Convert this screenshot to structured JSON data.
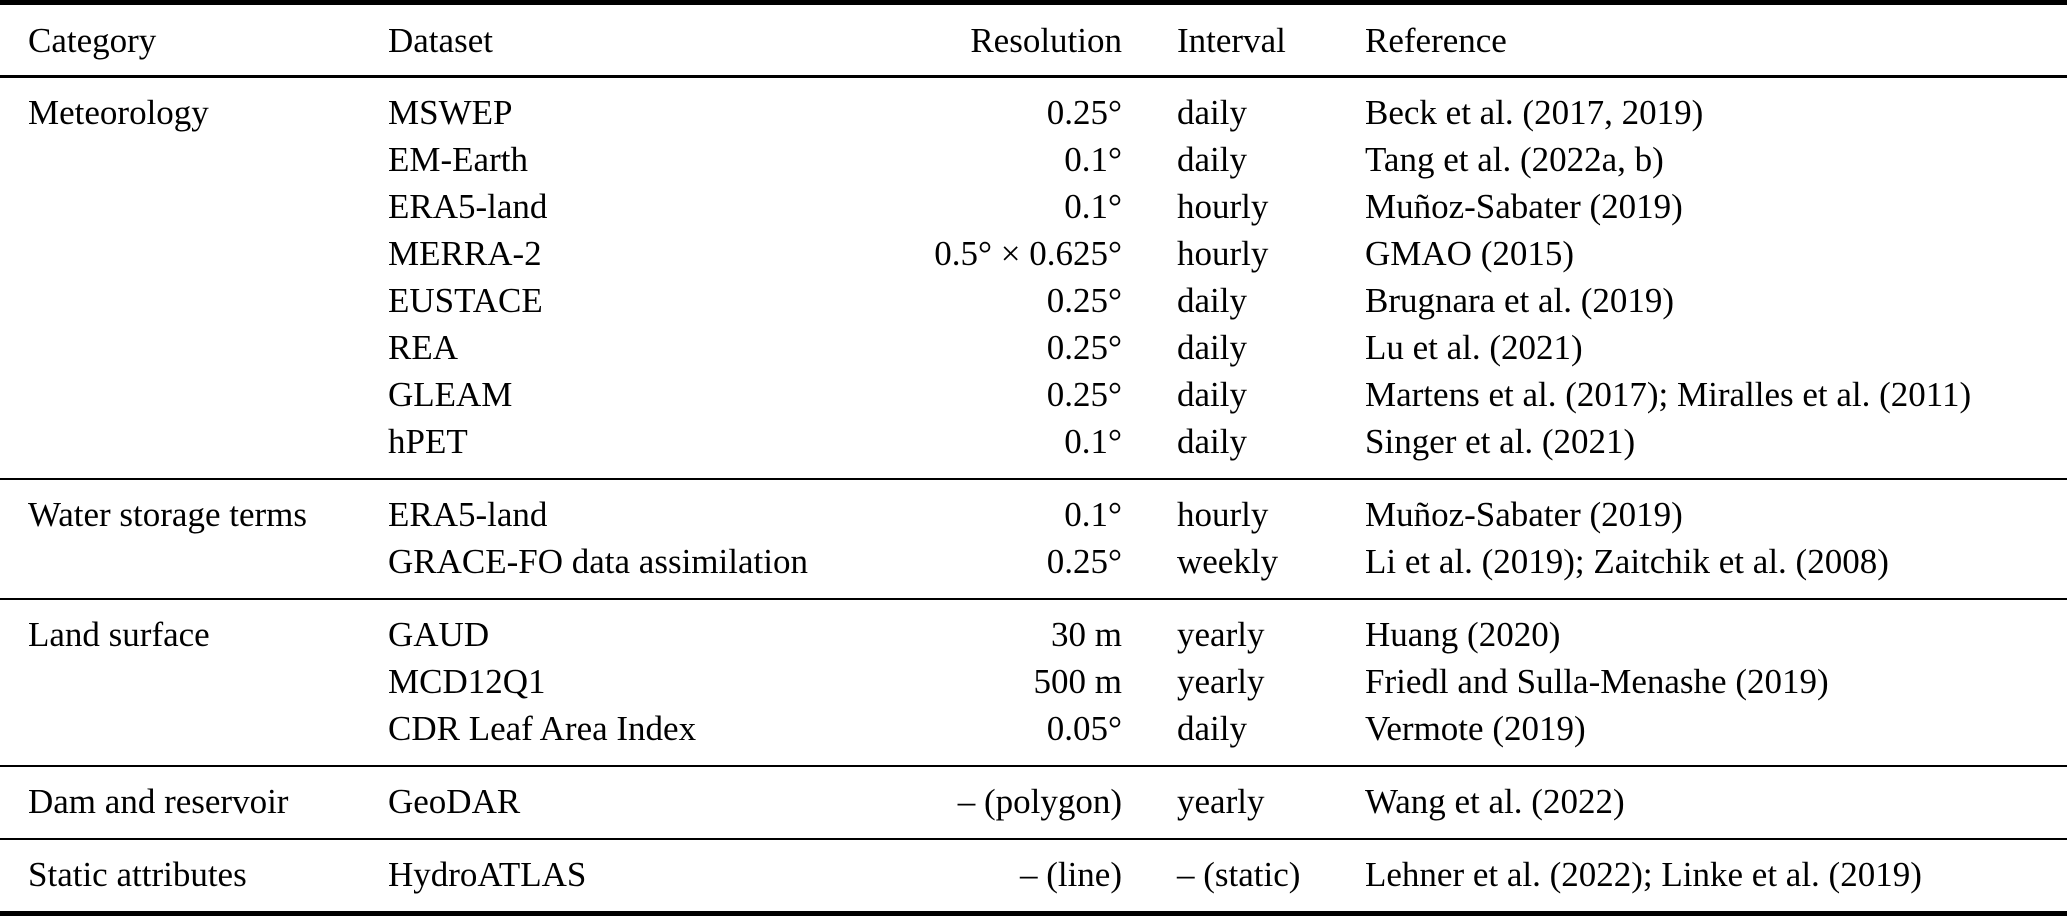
{
  "table": {
    "header": {
      "category": "Category",
      "dataset": "Dataset",
      "resolution": "Resolution",
      "interval": "Interval",
      "reference": "Reference"
    },
    "sections": [
      {
        "category": "Meteorology",
        "rows": [
          {
            "dataset": "MSWEP",
            "resolution": "0.25°",
            "interval": "daily",
            "reference": "Beck et al. (2017, 2019)"
          },
          {
            "dataset": "EM-Earth",
            "resolution": "0.1°",
            "interval": "daily",
            "reference": "Tang et al. (2022a, b)"
          },
          {
            "dataset": "ERA5-land",
            "resolution": "0.1°",
            "interval": "hourly",
            "reference": "Muñoz-Sabater (2019)"
          },
          {
            "dataset": "MERRA-2",
            "resolution": "0.5° × 0.625°",
            "interval": "hourly",
            "reference": "GMAO (2015)"
          },
          {
            "dataset": "EUSTACE",
            "resolution": "0.25°",
            "interval": "daily",
            "reference": "Brugnara et al. (2019)"
          },
          {
            "dataset": "REA",
            "resolution": "0.25°",
            "interval": "daily",
            "reference": "Lu et al. (2021)"
          },
          {
            "dataset": "GLEAM",
            "resolution": "0.25°",
            "interval": "daily",
            "reference": "Martens et al. (2017); Miralles et al. (2011)"
          },
          {
            "dataset": "hPET",
            "resolution": "0.1°",
            "interval": "daily",
            "reference": "Singer et al. (2021)"
          }
        ]
      },
      {
        "category": "Water storage terms",
        "rows": [
          {
            "dataset": "ERA5-land",
            "resolution": "0.1°",
            "interval": "hourly",
            "reference": "Muñoz-Sabater (2019)"
          },
          {
            "dataset": "GRACE-FO data assimilation",
            "resolution": "0.25°",
            "interval": "weekly",
            "reference": "Li et al. (2019); Zaitchik et al. (2008)"
          }
        ]
      },
      {
        "category": "Land surface",
        "rows": [
          {
            "dataset": "GAUD",
            "resolution": "30 m",
            "interval": "yearly",
            "reference": "Huang (2020)"
          },
          {
            "dataset": "MCD12Q1",
            "resolution": "500 m",
            "interval": "yearly",
            "reference": "Friedl and Sulla-Menashe (2019)"
          },
          {
            "dataset": "CDR Leaf Area Index",
            "resolution": "0.05°",
            "interval": "daily",
            "reference": "Vermote (2019)"
          }
        ]
      },
      {
        "category": "Dam and reservoir",
        "rows": [
          {
            "dataset": "GeoDAR",
            "resolution": "– (polygon)",
            "interval": "yearly",
            "reference": "Wang et al. (2022)"
          }
        ]
      },
      {
        "category": "Static attributes",
        "rows": [
          {
            "dataset": "HydroATLAS",
            "resolution": "– (line)",
            "interval": "– (static)",
            "reference": "Lehner et al. (2022); Linke et al. (2019)"
          }
        ]
      }
    ]
  }
}
